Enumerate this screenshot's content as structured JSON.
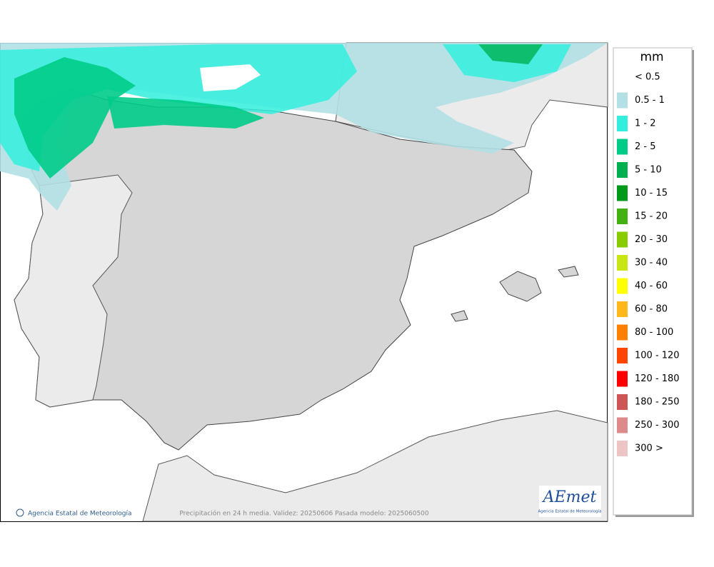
{
  "legend": {
    "unit": "mm",
    "items": [
      {
        "label": "< 0.5",
        "color": "#ffffff"
      },
      {
        "label": "0.5 - 1",
        "color": "#b3e0e5"
      },
      {
        "label": "1 - 2",
        "color": "#33eedd"
      },
      {
        "label": "2 - 5",
        "color": "#00cc88"
      },
      {
        "label": "5 - 10",
        "color": "#00b050"
      },
      {
        "label": "10 - 15",
        "color": "#009a1a"
      },
      {
        "label": "15 - 20",
        "color": "#44b014"
      },
      {
        "label": "20 - 30",
        "color": "#88cc00"
      },
      {
        "label": "30 - 40",
        "color": "#c8e614"
      },
      {
        "label": "40 - 60",
        "color": "#ffff00"
      },
      {
        "label": "60 - 80",
        "color": "#ffb81c"
      },
      {
        "label": "80 - 100",
        "color": "#ff8000"
      },
      {
        "label": "100 - 120",
        "color": "#ff4500"
      },
      {
        "label": "120 - 180",
        "color": "#ff0000"
      },
      {
        "label": "180 - 250",
        "color": "#cd5555"
      },
      {
        "label": "250 - 300",
        "color": "#dd8a8a"
      },
      {
        "label": "300 >",
        "color": "#efc4c4"
      }
    ]
  },
  "footer": {
    "credit": "Agencia Estatal de Meteorología",
    "caption": "Precipitación en 24 h media. Validez: 20250606 Pasada modelo: 2025060500"
  },
  "logo": {
    "name": "AEmet",
    "subtitle": "Agencia Estatal de Meteorología"
  }
}
